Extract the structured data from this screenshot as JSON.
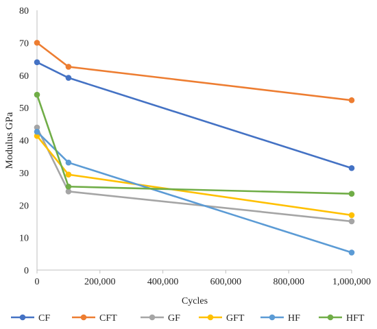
{
  "chart_data": {
    "type": "line",
    "xlabel": "Cycles",
    "ylabel": "Modulus GPa",
    "xlim": [
      0,
      1000000
    ],
    "ylim": [
      0,
      80
    ],
    "x_ticks": [
      0,
      200000,
      400000,
      600000,
      800000,
      1000000
    ],
    "x_tick_labels": [
      "0",
      "200,000",
      "400,000",
      "600,000",
      "800,000",
      "1,000,000"
    ],
    "y_ticks": [
      0,
      10,
      20,
      30,
      40,
      50,
      60,
      70,
      80
    ],
    "y_tick_labels": [
      "0",
      "10",
      "20",
      "30",
      "40",
      "50",
      "60",
      "70",
      "80"
    ],
    "grid": false,
    "legend_position": "bottom",
    "x": [
      0,
      100000,
      1000000
    ],
    "series": [
      {
        "name": "CF",
        "color": "#4472C4",
        "values": [
          64.0,
          59.2,
          31.4
        ]
      },
      {
        "name": "CFT",
        "color": "#ED7D31",
        "values": [
          70.0,
          62.6,
          52.3
        ]
      },
      {
        "name": "GF",
        "color": "#A5A5A5",
        "values": [
          43.9,
          24.2,
          15.0
        ]
      },
      {
        "name": "GFT",
        "color": "#FFC000",
        "values": [
          41.3,
          29.4,
          16.9
        ]
      },
      {
        "name": "HF",
        "color": "#5B9BD5",
        "values": [
          42.6,
          33.1,
          5.4
        ]
      },
      {
        "name": "HFT",
        "color": "#70AD47",
        "values": [
          54.0,
          25.7,
          23.5
        ]
      }
    ]
  }
}
